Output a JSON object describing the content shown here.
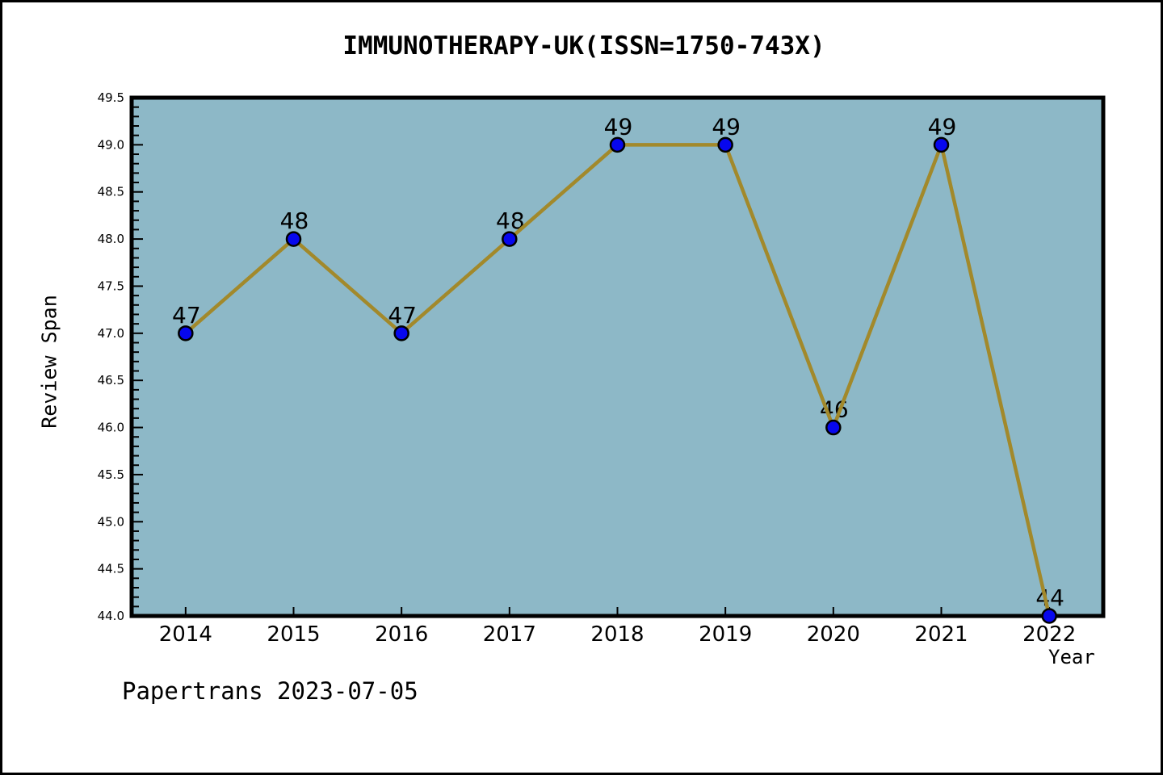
{
  "figure": {
    "title": "IMMUNOTHERAPY-UK(ISSN=1750-743X)",
    "watermark": "Papertrans 2023-07-05"
  },
  "chart_data": {
    "type": "line",
    "title": "IMMUNOTHERAPY-UK(ISSN=1750-743X)",
    "xlabel": "Year",
    "ylabel": "Review Span",
    "x": [
      2014,
      2015,
      2016,
      2017,
      2018,
      2019,
      2020,
      2021,
      2022
    ],
    "values": [
      47,
      48,
      47,
      48,
      49,
      49,
      46,
      49,
      44
    ],
    "point_labels": [
      "47",
      "48",
      "47",
      "48",
      "49",
      "49",
      "46",
      "49",
      "44"
    ],
    "xlim": [
      2013.5,
      2022.5
    ],
    "ylim": [
      44.0,
      49.5
    ],
    "xticks": [
      2014,
      2015,
      2016,
      2017,
      2018,
      2019,
      2020,
      2021,
      2022
    ],
    "ytick_step": 0.5,
    "ytick_minor_step": 0.1,
    "ytick_decimals": 1,
    "grid": false,
    "legend": null,
    "colors": {
      "line": "#a2892b",
      "marker_fill": "#0707ee",
      "marker_edge": "#000000",
      "plot_background": "#8db8c7",
      "figure_background": "#ffffff",
      "spine": "#000000",
      "tick": "#000000",
      "text": "#000000"
    }
  }
}
